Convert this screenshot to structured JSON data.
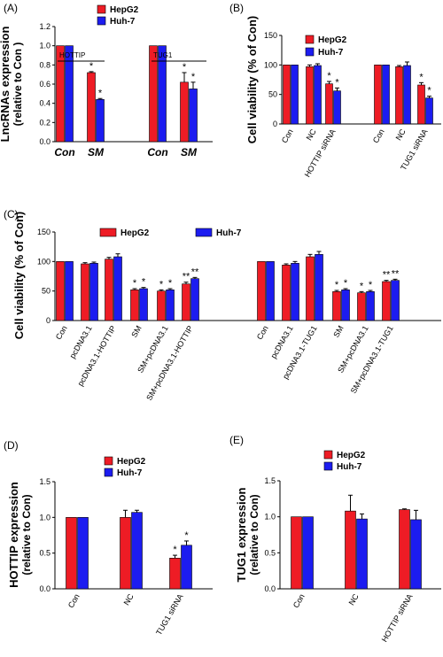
{
  "colors": {
    "HepG2": "#ee1c25",
    "Huh-7": "#1c1cf0",
    "axis": "#000000"
  },
  "chart_data": [
    {
      "panel": "(A)",
      "type": "bar",
      "ylabel": [
        "LncRNAs expression",
        "(relative to Con )"
      ],
      "ylim": [
        0,
        1.2
      ],
      "yticks": [
        "0.0",
        "0.2",
        "0.4",
        "0.6",
        "0.8",
        "1.0",
        "1.2"
      ],
      "groups": [
        {
          "label": "HOTTIP",
          "categories": [
            "Con",
            "SM"
          ]
        },
        {
          "label": "TUG1",
          "categories": [
            "Con",
            "SM"
          ]
        }
      ],
      "categories": [
        "Con",
        "SM",
        "Con",
        "SM"
      ],
      "series": [
        {
          "name": "HepG2",
          "values": [
            1.0,
            0.72,
            1.0,
            0.62
          ],
          "errors": [
            0,
            0.01,
            0,
            0.1
          ],
          "stars": [
            "",
            "*",
            "",
            "*"
          ]
        },
        {
          "name": "Huh-7",
          "values": [
            1.0,
            0.44,
            1.0,
            0.55
          ],
          "errors": [
            0,
            0.01,
            0,
            0.07
          ],
          "stars": [
            "",
            "*",
            "",
            "*"
          ]
        }
      ]
    },
    {
      "panel": "(B)",
      "type": "bar",
      "ylabel": [
        "Cell viability (% of Con)"
      ],
      "ylim": [
        0,
        150
      ],
      "yticks": [
        "0",
        "50",
        "100",
        "150"
      ],
      "categories": [
        "Con",
        "NC",
        "HOTTIP siRNA",
        "Con",
        "NC",
        "TUG1 siRNA"
      ],
      "series": [
        {
          "name": "HepG2",
          "values": [
            100,
            97,
            68,
            100,
            97,
            66
          ],
          "errors": [
            0,
            3,
            4,
            0,
            2,
            4
          ],
          "stars": [
            "",
            "",
            "*",
            "",
            "",
            "*"
          ]
        },
        {
          "name": "Huh-7",
          "values": [
            100,
            99,
            56,
            100,
            99,
            44
          ],
          "errors": [
            0,
            3,
            5,
            0,
            6,
            3
          ],
          "stars": [
            "",
            "",
            "*",
            "",
            "",
            "*"
          ]
        }
      ]
    },
    {
      "panel": "(C)",
      "type": "bar",
      "ylabel": [
        "Cell viability (% of Con)"
      ],
      "ylim": [
        0,
        150
      ],
      "yticks": [
        "0",
        "50",
        "100",
        "150"
      ],
      "categories": [
        "Con",
        "pcDNA3.1",
        "pcDNA3.1-HOTTIP",
        "SM",
        "SM+pcDNA3.1",
        "SM+pcDNA3.1-HOTTIP",
        "Con",
        "pcDNA3.1",
        "pcDNA3.1-TUG1",
        "SM",
        "SM+pcDNA3.1",
        "SM+pcDNA3.1-TUG1"
      ],
      "series": [
        {
          "name": "HepG2",
          "values": [
            100,
            96,
            104,
            52,
            50,
            62,
            100,
            94,
            108,
            49,
            47,
            66
          ],
          "errors": [
            0,
            2,
            3,
            2,
            2,
            3,
            0,
            2,
            4,
            2,
            2,
            2
          ],
          "stars": [
            "",
            "",
            "",
            "*",
            "*",
            "**",
            "",
            "",
            "",
            "*",
            "*",
            "**"
          ]
        },
        {
          "name": "Huh-7",
          "values": [
            100,
            97,
            108,
            54,
            52,
            71,
            100,
            97,
            112,
            52,
            49,
            68
          ],
          "errors": [
            0,
            2,
            5,
            2,
            2,
            2,
            0,
            3,
            5,
            2,
            2,
            2
          ],
          "stars": [
            "",
            "",
            "",
            "*",
            "*",
            "**",
            "",
            "",
            "",
            "*",
            "*",
            "**"
          ]
        }
      ]
    },
    {
      "panel": "(D)",
      "type": "bar",
      "ylabel": [
        "HOTTIP expression",
        "(relative to Con)"
      ],
      "ylim": [
        0,
        1.5
      ],
      "yticks": [
        "0.0",
        "0.5",
        "1.0",
        "1.5"
      ],
      "categories": [
        "Con",
        "NC",
        "TUG1 siRNA"
      ],
      "series": [
        {
          "name": "HepG2",
          "values": [
            1.0,
            1.0,
            0.43
          ],
          "errors": [
            0,
            0.1,
            0.04
          ],
          "stars": [
            "",
            "",
            "*"
          ]
        },
        {
          "name": "Huh-7",
          "values": [
            1.0,
            1.07,
            0.61
          ],
          "errors": [
            0,
            0.03,
            0.06
          ],
          "stars": [
            "",
            "",
            "*"
          ]
        }
      ]
    },
    {
      "panel": "(E)",
      "type": "bar",
      "ylabel": [
        "TUG1 expression",
        "(relative to Con)"
      ],
      "ylim": [
        0,
        1.5
      ],
      "yticks": [
        "0.0",
        "0.5",
        "1.0",
        "1.5"
      ],
      "categories": [
        "Con",
        "NC",
        "HOTTIP siRNA"
      ],
      "series": [
        {
          "name": "HepG2",
          "values": [
            1.0,
            1.08,
            1.1
          ],
          "errors": [
            0,
            0.22,
            0.01
          ],
          "stars": [
            "",
            "",
            ""
          ]
        },
        {
          "name": "Huh-7",
          "values": [
            1.0,
            0.97,
            0.96
          ],
          "errors": [
            0,
            0.07,
            0.13
          ],
          "stars": [
            "",
            "",
            ""
          ]
        }
      ]
    }
  ]
}
